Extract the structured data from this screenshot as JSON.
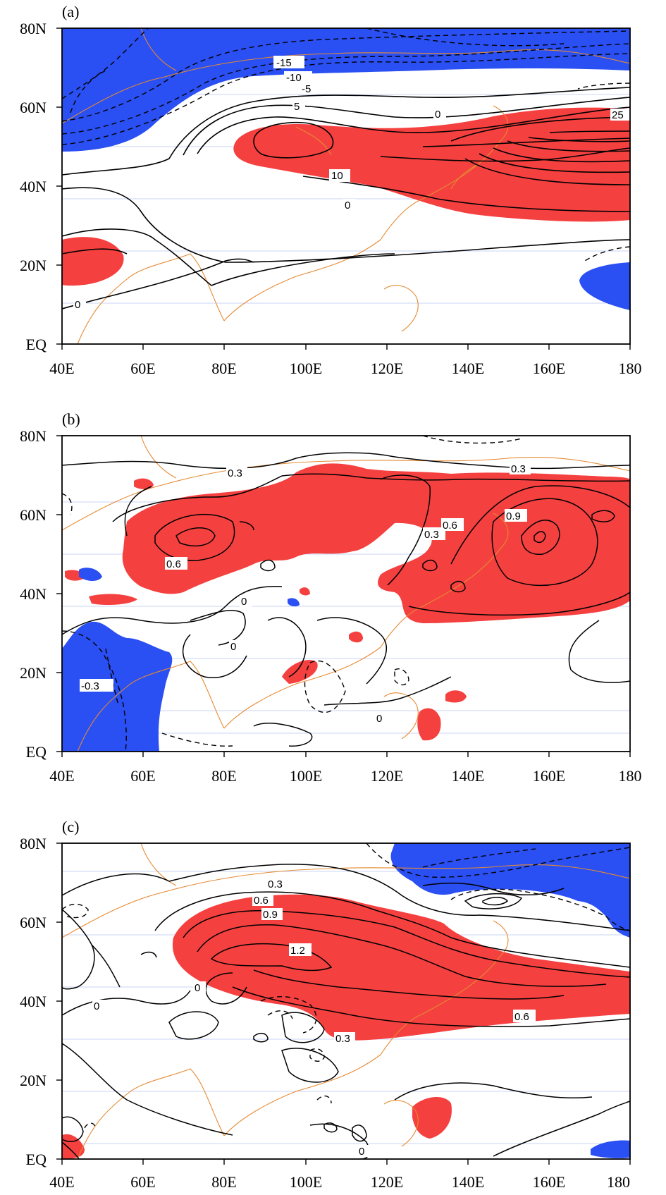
{
  "colors": {
    "positive_shade": "#f54040",
    "negative_shade": "#2a4ff2",
    "coast": "#e58a33",
    "contour": "#000000",
    "gridline": "#b9c6f2"
  },
  "panels": [
    {
      "label": "(a)",
      "contour_labels": [
        "-15",
        "-10",
        "-5",
        "5",
        "0",
        "10",
        "0",
        "0",
        "25"
      ]
    },
    {
      "label": "(b)",
      "contour_labels": [
        "0.3",
        "0.3",
        "0.6",
        "0.3",
        "0.6",
        "0.9",
        "0",
        "0",
        "-0.3",
        "0"
      ]
    },
    {
      "label": "(c)",
      "contour_labels": [
        "0.3",
        "0.6",
        "0.9",
        "1.2",
        "0",
        "0",
        "0.3",
        "0.6",
        "0"
      ]
    }
  ],
  "axes": {
    "x_ticks": [
      "40E",
      "60E",
      "80E",
      "100E",
      "120E",
      "140E",
      "160E",
      "180"
    ],
    "y_ticks": [
      "80N",
      "60N",
      "40N",
      "20N",
      "EQ"
    ]
  }
}
